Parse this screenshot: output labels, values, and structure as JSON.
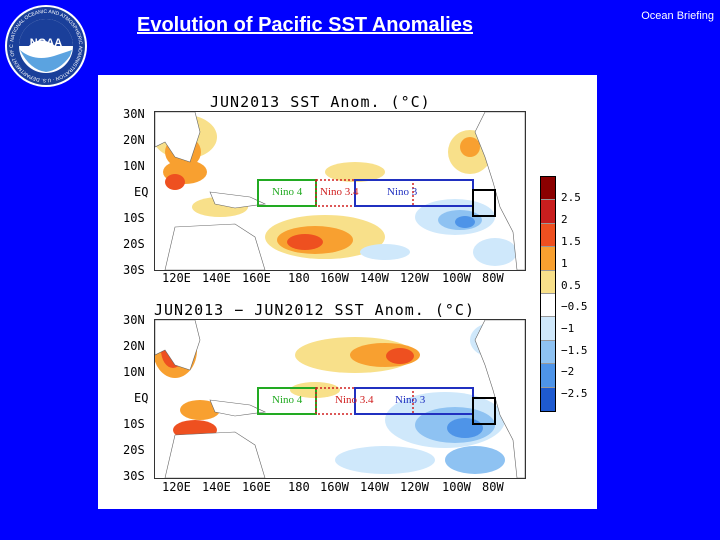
{
  "slide": {
    "title": "Evolution of Pacific SST Anomalies",
    "corner_label": "Ocean Briefing",
    "logo_text": "NOAA",
    "logo_ring_text": "NATIONAL OCEANIC AND ATMOSPHERIC ADMINISTRATION · U.S. DEPARTMENT OF COMMERCE"
  },
  "maps": [
    {
      "title": "JUN2013 SST Anom. (°C)",
      "lat_labels": [
        "30N",
        "20N",
        "10N",
        "EQ",
        "10S",
        "20S",
        "30S"
      ],
      "lon_labels": [
        "120E",
        "140E",
        "160E",
        "180",
        "160W",
        "140W",
        "120W",
        "100W",
        "80W"
      ],
      "regions": [
        "Nino 4",
        "Nino 3.4",
        "Nino 3"
      ]
    },
    {
      "title": "JUN2013 − JUN2012 SST Anom. (°C)",
      "lat_labels": [
        "30N",
        "20N",
        "10N",
        "EQ",
        "10S",
        "20S",
        "30S"
      ],
      "lon_labels": [
        "120E",
        "140E",
        "160E",
        "180",
        "160W",
        "140W",
        "120W",
        "100W",
        "80W"
      ],
      "regions": [
        "Nino 4",
        "Nino 3.4",
        "Nino 3"
      ]
    }
  ],
  "colorbar": {
    "labels": [
      "2.5",
      "2",
      "1.5",
      "1",
      "0.5",
      "−0.5",
      "−1",
      "−1.5",
      "−2",
      "−2.5"
    ],
    "colors": [
      "#8b0000",
      "#c81e1e",
      "#ee5020",
      "#f8a030",
      "#f8e08a",
      "#ffffff",
      "#cfe8fb",
      "#8ec2f2",
      "#4e94e8",
      "#1e5ad0"
    ]
  },
  "colors": {
    "background": "#0000ff",
    "nino4_box": "#22aa22",
    "nino34_box": "#d02020",
    "nino3_box": "#2030c0",
    "warm1": "#f8e08a",
    "warm2": "#f8a030",
    "warm3": "#ee5020",
    "warm4": "#c81e1e",
    "cool1": "#cfe8fb",
    "cool2": "#8ec2f2",
    "cool3": "#4e94e8"
  }
}
